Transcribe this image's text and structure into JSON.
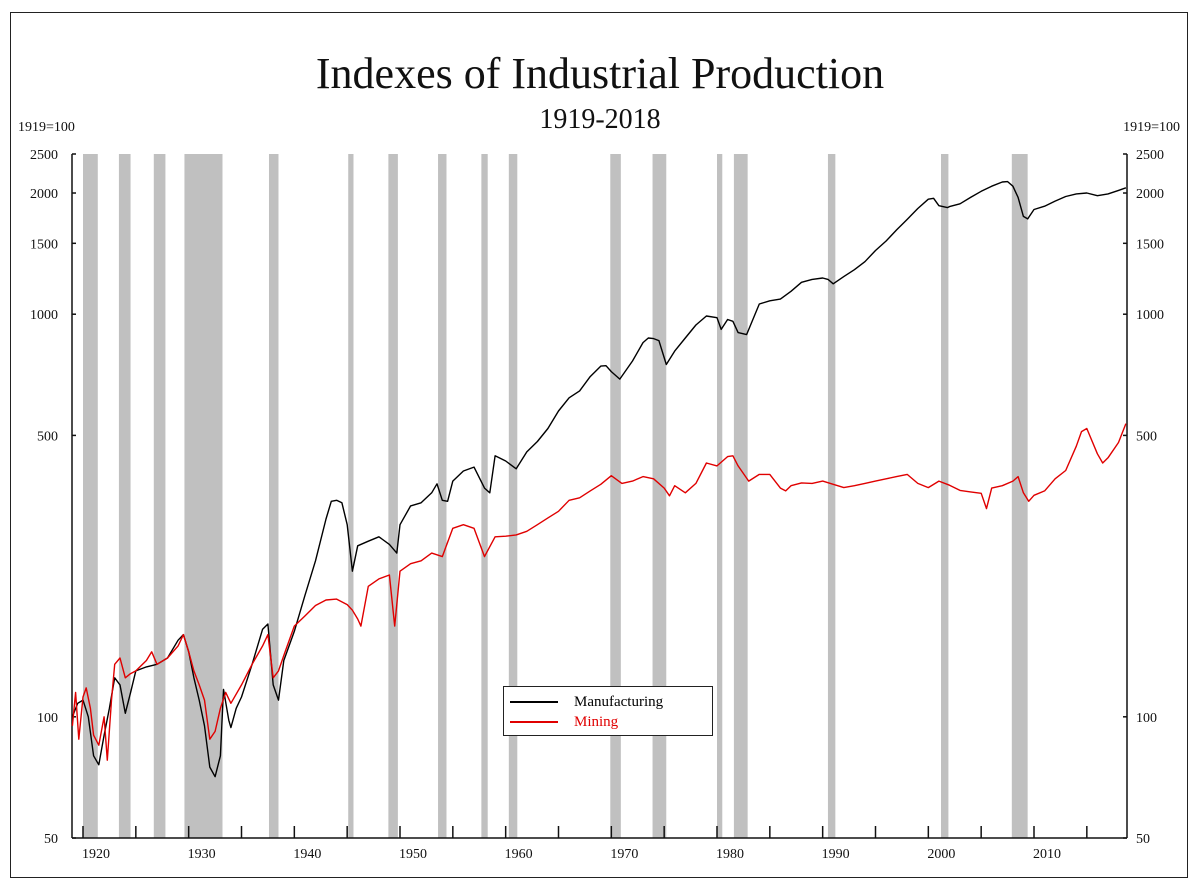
{
  "chart_data": {
    "type": "line",
    "title": "Indexes of Industrial Production",
    "subtitle": "1919-2018",
    "xlabel": "",
    "ylabel_left": "1919=100",
    "ylabel_right": "1919=100",
    "y_scale": "log",
    "xlim": [
      1919,
      2018.8
    ],
    "ylim": [
      50,
      2500
    ],
    "x_ticks": [
      1920,
      1930,
      1940,
      1950,
      1960,
      1970,
      1980,
      1990,
      2000,
      2010
    ],
    "x_minor_ticks": [
      1925,
      1935,
      1945,
      1955,
      1965,
      1975,
      1985,
      1995,
      2005,
      2015
    ],
    "y_ticks": [
      50,
      100,
      500,
      1000,
      1500,
      2000,
      2500
    ],
    "y_tick_labels": [
      "50",
      "100",
      "500",
      "1000",
      "1500",
      "2000",
      "2500"
    ],
    "grid": false,
    "legend_position": "bottom-center",
    "recession_bands": [
      [
        1920.0,
        1921.4
      ],
      [
        1923.4,
        1924.5
      ],
      [
        1926.7,
        1927.8
      ],
      [
        1929.6,
        1933.2
      ],
      [
        1937.6,
        1938.5
      ],
      [
        1945.1,
        1945.6
      ],
      [
        1948.9,
        1949.8
      ],
      [
        1953.6,
        1954.4
      ],
      [
        1957.7,
        1958.3
      ],
      [
        1960.3,
        1961.1
      ],
      [
        1969.9,
        1970.9
      ],
      [
        1973.9,
        1975.2
      ],
      [
        1980.0,
        1980.5
      ],
      [
        1981.6,
        1982.9
      ],
      [
        1990.5,
        1991.2
      ],
      [
        2001.2,
        2001.9
      ],
      [
        2007.9,
        2009.4
      ]
    ],
    "series": [
      {
        "name": "Manufacturing",
        "color": "#000000",
        "x": [
          1919,
          1919.5,
          1920,
          1920.5,
          1921,
          1921.5,
          1922,
          1922.5,
          1923,
          1923.5,
          1924,
          1924.5,
          1925,
          1926,
          1927,
          1928,
          1929,
          1929.5,
          1930,
          1930.5,
          1931,
          1931.5,
          1932,
          1932.5,
          1933,
          1933.3,
          1933.8,
          1934,
          1934.5,
          1935,
          1936,
          1937,
          1937.5,
          1938,
          1938.5,
          1939,
          1940,
          1941,
          1942,
          1943,
          1943.5,
          1944,
          1944.5,
          1945,
          1945.5,
          1946,
          1947,
          1948,
          1949,
          1949.7,
          1950,
          1951,
          1952,
          1953,
          1953.5,
          1954,
          1954.5,
          1955,
          1956,
          1957,
          1958,
          1958.5,
          1959,
          1960,
          1961,
          1962,
          1963,
          1964,
          1965,
          1966,
          1967,
          1968,
          1969,
          1969.5,
          1970,
          1970.8,
          1972,
          1973,
          1973.5,
          1974,
          1974.5,
          1975.2,
          1976,
          1977,
          1978,
          1979,
          1980,
          1980.4,
          1981,
          1981.5,
          1982,
          1982.8,
          1984,
          1985,
          1986,
          1987,
          1988,
          1989,
          1990,
          1990.5,
          1991,
          1992,
          1993,
          1994,
          1995,
          1996,
          1997,
          1998,
          1999,
          2000,
          2000.5,
          2001,
          2001.8,
          2002,
          2003,
          2004,
          2005,
          2006,
          2007,
          2007.5,
          2008,
          2008.5,
          2009,
          2009.4,
          2010,
          2011,
          2012,
          2013,
          2014,
          2015,
          2016,
          2017,
          2018,
          2018.7
        ],
        "values": [
          100,
          108,
          110,
          100,
          80,
          76,
          90,
          105,
          125,
          120,
          102,
          115,
          130,
          133,
          135,
          140,
          155,
          160,
          145,
          125,
          110,
          95,
          75,
          71,
          80,
          117,
          98,
          94,
          105,
          112,
          135,
          165,
          170,
          120,
          110,
          138,
          163,
          200,
          244,
          310,
          343,
          345,
          340,
          300,
          230,
          266,
          273,
          280,
          268,
          255,
          300,
          334,
          340,
          360,
          379,
          345,
          343,
          385,
          408,
          417,
          370,
          360,
          445,
          432,
          413,
          455,
          483,
          520,
          575,
          620,
          645,
          700,
          743,
          745,
          720,
          690,
          765,
          850,
          873,
          870,
          860,
          750,
          810,
          873,
          940,
          990,
          980,
          917,
          970,
          960,
          900,
          890,
          1060,
          1080,
          1090,
          1140,
          1200,
          1220,
          1230,
          1220,
          1190,
          1240,
          1290,
          1350,
          1440,
          1520,
          1620,
          1720,
          1830,
          1930,
          1940,
          1860,
          1840,
          1850,
          1880,
          1950,
          2020,
          2080,
          2130,
          2135,
          2080,
          1950,
          1750,
          1725,
          1820,
          1855,
          1910,
          1960,
          1990,
          2000,
          1970,
          1990,
          2030,
          2060
        ]
      },
      {
        "name": "Mining",
        "color": "#e00000",
        "x": [
          1919,
          1919.3,
          1919.6,
          1920,
          1920.3,
          1920.7,
          1921,
          1921.5,
          1922,
          1922.3,
          1922.7,
          1923,
          1923.5,
          1924,
          1924.5,
          1925,
          1926,
          1926.5,
          1927,
          1928,
          1929,
          1929.5,
          1930,
          1930.5,
          1931,
          1931.5,
          1932,
          1932.5,
          1933,
          1933.5,
          1934,
          1935,
          1936,
          1937,
          1937.5,
          1938,
          1938.5,
          1939,
          1940,
          1941,
          1942,
          1943,
          1944,
          1945,
          1945.5,
          1946,
          1946.3,
          1947,
          1948,
          1949,
          1949.5,
          1950,
          1951,
          1952,
          1953,
          1954,
          1955,
          1956,
          1957,
          1958,
          1959,
          1960,
          1961,
          1962,
          1963,
          1964,
          1965,
          1966,
          1967,
          1968,
          1969,
          1970,
          1971,
          1972,
          1973,
          1974,
          1975,
          1975.5,
          1976,
          1977,
          1978,
          1979,
          1980,
          1981,
          1981.5,
          1982,
          1983,
          1984,
          1985,
          1986,
          1986.5,
          1987,
          1988,
          1989,
          1990,
          1991,
          1992,
          1993,
          1994,
          1995,
          1996,
          1997,
          1998,
          1999,
          2000,
          2001,
          2002,
          2003,
          2004,
          2005,
          2005.5,
          2006,
          2007,
          2008,
          2008.5,
          2009,
          2009.5,
          2010,
          2011,
          2012,
          2013,
          2014,
          2014.5,
          2015,
          2016,
          2016.5,
          2017,
          2018,
          2018.7
        ],
        "values": [
          95,
          115,
          88,
          112,
          118,
          105,
          90,
          85,
          100,
          78,
          110,
          135,
          140,
          125,
          128,
          130,
          138,
          145,
          135,
          140,
          150,
          160,
          145,
          130,
          120,
          110,
          88,
          92,
          105,
          115,
          108,
          120,
          135,
          150,
          160,
          125,
          130,
          142,
          168,
          178,
          189,
          195,
          196,
          190,
          184,
          175,
          168,
          211,
          220,
          225,
          168,
          230,
          240,
          244,
          255,
          250,
          294,
          300,
          294,
          250,
          280,
          281,
          283,
          289,
          300,
          312,
          324,
          345,
          350,
          364,
          378,
          397,
          380,
          385,
          395,
          390,
          370,
          354,
          375,
          360,
          380,
          427,
          420,
          443,
          445,
          420,
          385,
          400,
          400,
          370,
          364,
          375,
          381,
          380,
          385,
          378,
          371,
          375,
          380,
          385,
          390,
          395,
          400,
          380,
          371,
          385,
          376,
          365,
          362,
          359,
          329,
          370,
          375,
          385,
          395,
          360,
          343,
          355,
          364,
          390,
          409,
          470,
          511,
          520,
          450,
          427,
          440,
          480,
          535
        ]
      }
    ]
  },
  "legend": {
    "items": [
      {
        "label": "Manufacturing",
        "color": "#000000"
      },
      {
        "label": "Mining",
        "color": "#e00000"
      }
    ]
  },
  "colors": {
    "recession_band": "#c0c0c0",
    "axis": "#111111"
  }
}
